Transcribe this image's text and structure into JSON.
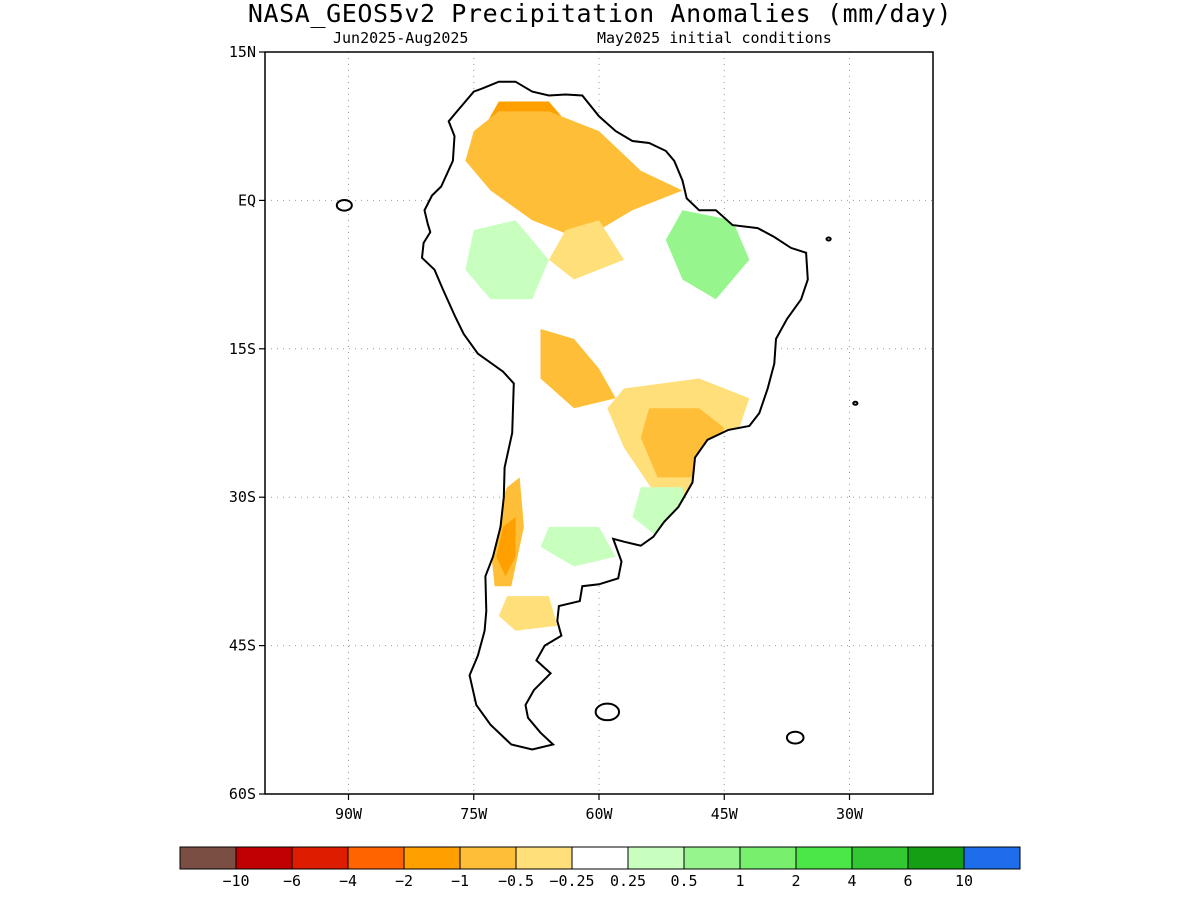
{
  "title": "NASA_GEOS5v2 Precipitation Anomalies (mm/day)",
  "subtitle_left": "Jun2025-Aug2025",
  "subtitle_right": "May2025 initial conditions",
  "map": {
    "lon_range": [
      -100,
      -20
    ],
    "lat_range": [
      -60,
      15
    ],
    "lat_ticks": [
      {
        "value": 15,
        "label": "15N"
      },
      {
        "value": 0,
        "label": "EQ"
      },
      {
        "value": -15,
        "label": "15S"
      },
      {
        "value": -30,
        "label": "30S"
      },
      {
        "value": -45,
        "label": "45S"
      },
      {
        "value": -60,
        "label": "60S"
      }
    ],
    "lon_ticks": [
      {
        "value": -90,
        "label": "90W"
      },
      {
        "value": -75,
        "label": "75W"
      },
      {
        "value": -60,
        "label": "60W"
      },
      {
        "value": -45,
        "label": "45W"
      },
      {
        "value": -30,
        "label": "30W"
      }
    ],
    "grid": true,
    "coastline_outline": [
      [
        -78,
        8
      ],
      [
        -77,
        9
      ],
      [
        -76,
        10
      ],
      [
        -75,
        11
      ],
      [
        -74,
        11.3
      ],
      [
        -72,
        12
      ],
      [
        -70,
        12
      ],
      [
        -68,
        11
      ],
      [
        -66,
        10.6
      ],
      [
        -64,
        10.7
      ],
      [
        -62,
        10.6
      ],
      [
        -60,
        8.5
      ],
      [
        -58,
        7
      ],
      [
        -56,
        6
      ],
      [
        -54,
        5.8
      ],
      [
        -52,
        5
      ],
      [
        -51,
        4
      ],
      [
        -50,
        2
      ],
      [
        -49.5,
        0.2
      ],
      [
        -48,
        -1
      ],
      [
        -46,
        -1
      ],
      [
        -44,
        -2.5
      ],
      [
        -41,
        -2.8
      ],
      [
        -39,
        -3.7
      ],
      [
        -37,
        -4.8
      ],
      [
        -35.2,
        -5.3
      ],
      [
        -35,
        -8
      ],
      [
        -35.8,
        -10
      ],
      [
        -37.5,
        -12
      ],
      [
        -38.8,
        -14
      ],
      [
        -39,
        -16.5
      ],
      [
        -39.8,
        -19
      ],
      [
        -40.8,
        -21.5
      ],
      [
        -42,
        -22.8
      ],
      [
        -44.5,
        -23.2
      ],
      [
        -47,
        -24.2
      ],
      [
        -48.5,
        -26
      ],
      [
        -48.8,
        -28.5
      ],
      [
        -50.5,
        -31
      ],
      [
        -52.2,
        -32.5
      ],
      [
        -53.5,
        -34
      ],
      [
        -55,
        -34.9
      ],
      [
        -57,
        -34.5
      ],
      [
        -58.3,
        -34.2
      ],
      [
        -57.3,
        -36.5
      ],
      [
        -57.7,
        -38.2
      ],
      [
        -60,
        -38.8
      ],
      [
        -62,
        -39
      ],
      [
        -62.3,
        -40.5
      ],
      [
        -64.8,
        -41
      ],
      [
        -65,
        -42.5
      ],
      [
        -64.5,
        -44
      ],
      [
        -66.5,
        -45
      ],
      [
        -67.5,
        -46.5
      ],
      [
        -65.8,
        -47.8
      ],
      [
        -67.8,
        -49.5
      ],
      [
        -68.8,
        -51
      ],
      [
        -68.5,
        -52.3
      ],
      [
        -67,
        -53.8
      ],
      [
        -65.5,
        -55
      ],
      [
        -68,
        -55.5
      ],
      [
        -70.5,
        -55
      ],
      [
        -73,
        -53
      ],
      [
        -74.7,
        -51
      ],
      [
        -75.5,
        -48
      ],
      [
        -74.5,
        -46
      ],
      [
        -73.7,
        -43.5
      ],
      [
        -73.5,
        -41.5
      ],
      [
        -73.6,
        -38
      ],
      [
        -72.7,
        -36
      ],
      [
        -71.8,
        -33
      ],
      [
        -71.4,
        -30
      ],
      [
        -71.3,
        -27
      ],
      [
        -70.4,
        -23.5
      ],
      [
        -70.2,
        -18.5
      ],
      [
        -71.5,
        -17.3
      ],
      [
        -74.5,
        -15.5
      ],
      [
        -76.2,
        -13.5
      ],
      [
        -77.2,
        -11.8
      ],
      [
        -78.7,
        -9
      ],
      [
        -79.7,
        -7
      ],
      [
        -81.2,
        -5.8
      ],
      [
        -81,
        -4.3
      ],
      [
        -80.2,
        -3.2
      ],
      [
        -80.5,
        -2.4
      ],
      [
        -80.9,
        -1
      ],
      [
        -80,
        0.5
      ],
      [
        -78.9,
        1.4
      ],
      [
        -77.5,
        4
      ],
      [
        -77.3,
        6.5
      ],
      [
        -78,
        8
      ]
    ],
    "anomaly_regions": [
      {
        "class": "-2",
        "poly": [
          [
            -72,
            10
          ],
          [
            -66,
            10
          ],
          [
            -64,
            8
          ],
          [
            -65,
            5
          ],
          [
            -68,
            3
          ],
          [
            -72,
            4
          ],
          [
            -74,
            7
          ]
        ]
      },
      {
        "class": "-1",
        "poly": [
          [
            -75,
            7
          ],
          [
            -72,
            9
          ],
          [
            -66,
            9
          ],
          [
            -60,
            7
          ],
          [
            -55,
            3
          ],
          [
            -50,
            1
          ],
          [
            -56,
            -1
          ],
          [
            -62,
            -4
          ],
          [
            -68,
            -2
          ],
          [
            -73,
            1
          ],
          [
            -76,
            4
          ]
        ]
      },
      {
        "class": "-0.5",
        "poly": [
          [
            -64,
            -3
          ],
          [
            -60,
            -2
          ],
          [
            -57,
            -6
          ],
          [
            -63,
            -8
          ],
          [
            -66,
            -6
          ]
        ]
      },
      {
        "class": "1",
        "poly": [
          [
            -50,
            -1
          ],
          [
            -44,
            -2
          ],
          [
            -42,
            -6
          ],
          [
            -46,
            -10
          ],
          [
            -50,
            -8
          ],
          [
            -52,
            -4
          ]
        ]
      },
      {
        "class": "0.5",
        "poly": [
          [
            -75,
            -3
          ],
          [
            -70,
            -2
          ],
          [
            -66,
            -6
          ],
          [
            -68,
            -10
          ],
          [
            -73,
            -10
          ],
          [
            -76,
            -7
          ]
        ]
      },
      {
        "class": "-1",
        "poly": [
          [
            -67,
            -13
          ],
          [
            -63,
            -14
          ],
          [
            -60,
            -17
          ],
          [
            -58,
            -20
          ],
          [
            -63,
            -21
          ],
          [
            -67,
            -18
          ]
        ]
      },
      {
        "class": "-0.5",
        "poly": [
          [
            -57,
            -19
          ],
          [
            -48,
            -18
          ],
          [
            -42,
            -20
          ],
          [
            -44,
            -25
          ],
          [
            -48,
            -30
          ],
          [
            -53,
            -30
          ],
          [
            -57,
            -25
          ],
          [
            -59,
            -21
          ]
        ]
      },
      {
        "class": "-1",
        "poly": [
          [
            -54,
            -21
          ],
          [
            -48,
            -21
          ],
          [
            -45,
            -23
          ],
          [
            -48,
            -28
          ],
          [
            -53,
            -28
          ],
          [
            -55,
            -24
          ]
        ]
      },
      {
        "class": "0.5",
        "poly": [
          [
            -55,
            -29
          ],
          [
            -50,
            -29
          ],
          [
            -49,
            -33
          ],
          [
            -53,
            -34
          ],
          [
            -56,
            -32
          ]
        ]
      },
      {
        "class": "-1",
        "poly": [
          [
            -71,
            -29
          ],
          [
            -69.5,
            -28
          ],
          [
            -69,
            -33
          ],
          [
            -70.5,
            -39
          ],
          [
            -72.5,
            -39
          ],
          [
            -73,
            -35
          ],
          [
            -72,
            -31
          ]
        ]
      },
      {
        "class": "-2",
        "poly": [
          [
            -71.5,
            -33
          ],
          [
            -70,
            -32
          ],
          [
            -70,
            -36
          ],
          [
            -71.2,
            -38
          ],
          [
            -72.3,
            -36
          ]
        ]
      },
      {
        "class": "-0.5",
        "poly": [
          [
            -71,
            -40
          ],
          [
            -66,
            -40
          ],
          [
            -65,
            -43
          ],
          [
            -70,
            -43.5
          ],
          [
            -72,
            -42
          ]
        ]
      },
      {
        "class": "0.5",
        "poly": [
          [
            -66,
            -33
          ],
          [
            -60,
            -33
          ],
          [
            -58,
            -36
          ],
          [
            -63,
            -37
          ],
          [
            -67,
            -35
          ]
        ]
      }
    ],
    "islands": [
      {
        "name": "galapagos",
        "center": [
          -90.5,
          -0.5
        ],
        "r": 0.9
      },
      {
        "name": "falklands",
        "center": [
          -59,
          -51.7
        ],
        "r": 1.4
      },
      {
        "name": "south-georgia",
        "center": [
          -36.5,
          -54.3
        ],
        "r": 1.0
      },
      {
        "name": "fernando-de-noronha",
        "center": [
          -32.5,
          -3.9
        ],
        "r": 0.25
      },
      {
        "name": "trindade",
        "center": [
          -29.3,
          -20.5
        ],
        "r": 0.25
      }
    ]
  },
  "legend": {
    "colors": [
      "#7a4e43",
      "#c00000",
      "#dd1c00",
      "#ff6400",
      "#ff9f00",
      "#ffbe37",
      "#ffdf7a",
      "#ffffff",
      "#c8ffbe",
      "#96f58c",
      "#78f06e",
      "#4be647",
      "#32c832",
      "#14a014",
      "#1e6eeb"
    ],
    "labels": [
      "-10",
      "-6",
      "-4",
      "-2",
      "-1",
      "-0.5",
      "-0.25",
      "0.25",
      "0.5",
      "1",
      "2",
      "4",
      "6",
      "10"
    ]
  }
}
